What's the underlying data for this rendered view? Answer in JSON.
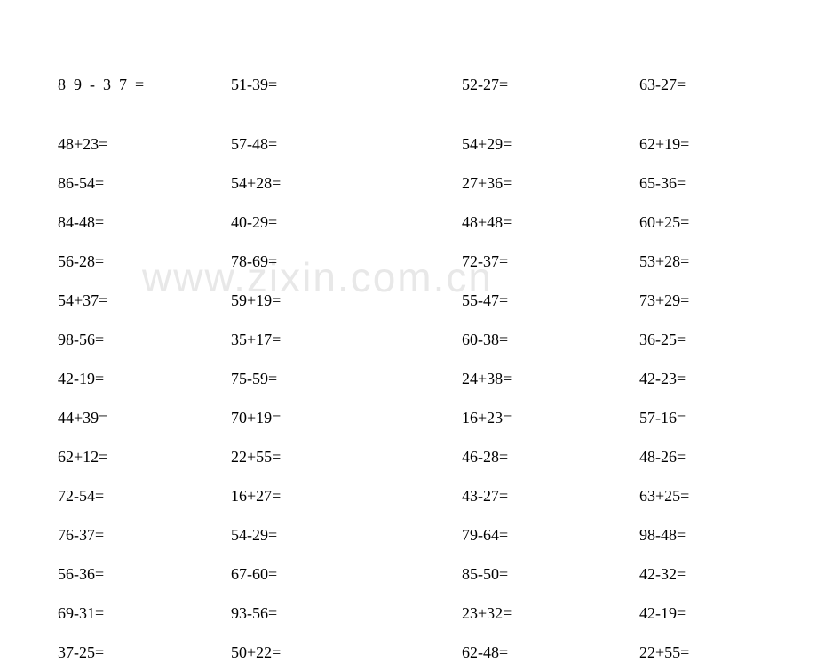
{
  "watermark": "www.zixin.com.cn",
  "font_size": 18,
  "text_color": "#000000",
  "background_color": "#ffffff",
  "watermark_color": "#e8e8e8",
  "rows": [
    {
      "c1": "89-37=",
      "c2": "51-39=",
      "c3": "52-27=",
      "c4": "63-27=",
      "spaced": true
    },
    {
      "c1": "48+23=",
      "c2": "57-48=",
      "c3": "54+29=",
      "c4": "62+19="
    },
    {
      "c1": "86-54=",
      "c2": "54+28=",
      "c3": "27+36=",
      "c4": "65-36="
    },
    {
      "c1": "84-48=",
      "c2": "40-29=",
      "c3": "48+48=",
      "c4": "60+25="
    },
    {
      "c1": "56-28=",
      "c2": "78-69=",
      "c3": "72-37=",
      "c4": "53+28="
    },
    {
      "c1": "54+37=",
      "c2": "59+19=",
      "c3": "55-47=",
      "c4": "73+29="
    },
    {
      "c1": "98-56=",
      "c2": "35+17=",
      "c3": "60-38=",
      "c4": "36-25="
    },
    {
      "c1": "42-19=",
      "c2": "75-59=",
      "c3": "24+38=",
      "c4": "42-23="
    },
    {
      "c1": "44+39=",
      "c2": "70+19=",
      "c3": "16+23=",
      "c4": "57-16="
    },
    {
      "c1": "62+12=",
      "c2": "22+55=",
      "c3": "46-28=",
      "c4": "48-26="
    },
    {
      "c1": "72-54=",
      "c2": "16+27=",
      "c3": "43-27=",
      "c4": "63+25="
    },
    {
      "c1": "76-37=",
      "c2": "54-29=",
      "c3": "79-64=",
      "c4": "98-48="
    },
    {
      "c1": "56-36=",
      "c2": "67-60=",
      "c3": "85-50=",
      "c4": "42-32="
    },
    {
      "c1": "69-31=",
      "c2": "93-56=",
      "c3": "23+32=",
      "c4": "42-19="
    },
    {
      "c1": "37-25=",
      "c2": "50+22=",
      "c3": "62-48=",
      "c4": "22+55="
    }
  ]
}
